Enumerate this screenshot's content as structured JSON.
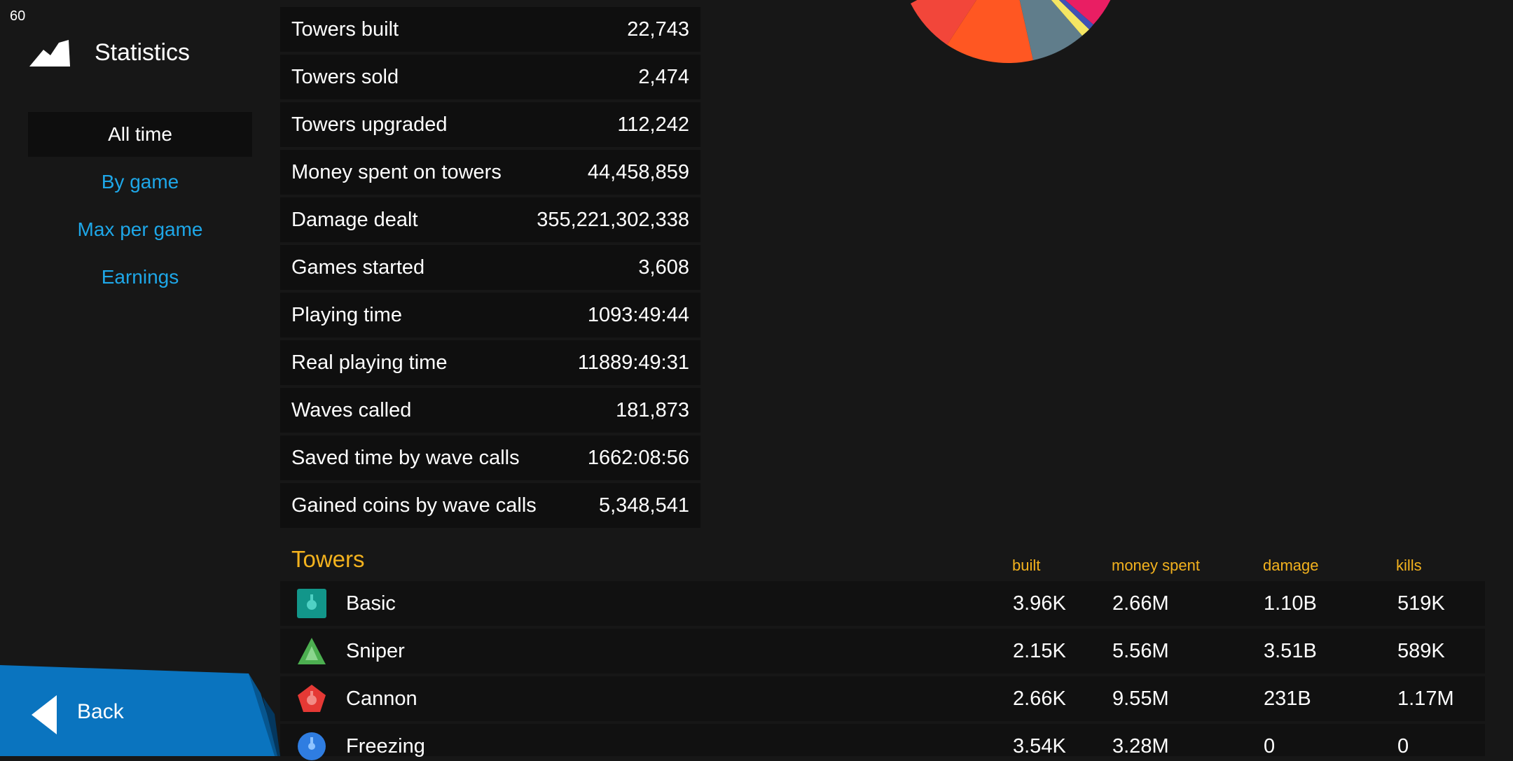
{
  "fps": "60",
  "header": {
    "title": "Statistics",
    "icon": "mountain-icon"
  },
  "nav": [
    {
      "label": "All time",
      "active": true
    },
    {
      "label": "By game",
      "active": false
    },
    {
      "label": "Max per game",
      "active": false
    },
    {
      "label": "Earnings",
      "active": false
    }
  ],
  "back_label": "Back",
  "stats": [
    {
      "label": "Towers built",
      "value": "22,743"
    },
    {
      "label": "Towers sold",
      "value": "2,474"
    },
    {
      "label": "Towers upgraded",
      "value": "112,242"
    },
    {
      "label": "Money spent on towers",
      "value": "44,458,859"
    },
    {
      "label": "Damage dealt",
      "value": "355,221,302,338"
    },
    {
      "label": "Games started",
      "value": "3,608"
    },
    {
      "label": "Playing time",
      "value": "1093:49:44"
    },
    {
      "label": "Real playing time",
      "value": "11889:49:31"
    },
    {
      "label": "Waves called",
      "value": "181,873"
    },
    {
      "label": "Saved time by wave calls",
      "value": "1662:08:56"
    },
    {
      "label": "Gained coins by wave calls",
      "value": "5,348,541"
    }
  ],
  "towers": {
    "title": "Towers",
    "columns": [
      "built",
      "money spent",
      "damage",
      "kills"
    ],
    "rows": [
      {
        "name": "Basic",
        "icon": "basic-tower-icon",
        "built": "3.96K",
        "money_spent": "2.66M",
        "damage": "1.10B",
        "kills": "519K"
      },
      {
        "name": "Sniper",
        "icon": "sniper-tower-icon",
        "built": "2.15K",
        "money_spent": "5.56M",
        "damage": "3.51B",
        "kills": "589K"
      },
      {
        "name": "Cannon",
        "icon": "cannon-tower-icon",
        "built": "2.66K",
        "money_spent": "9.55M",
        "damage": "231B",
        "kills": "1.17M"
      },
      {
        "name": "Freezing",
        "icon": "freezing-tower-icon",
        "built": "3.54K",
        "money_spent": "3.28M",
        "damage": "0",
        "kills": "0"
      }
    ]
  },
  "colors": {
    "accent_blue": "#1ea7e8",
    "accent_gold": "#f3b21e",
    "back_button": "#0a74bf"
  }
}
